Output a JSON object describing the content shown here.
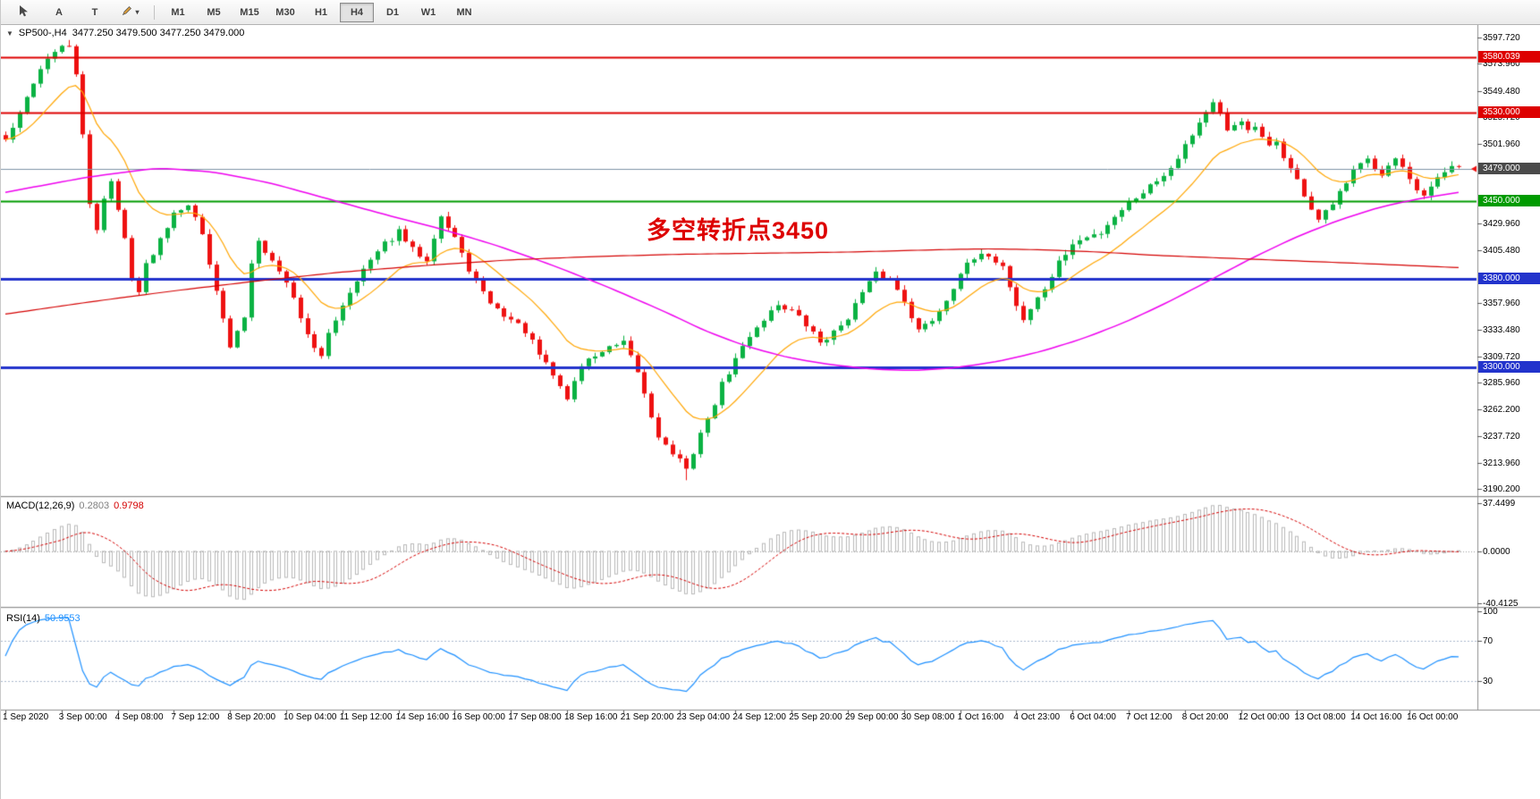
{
  "icons": {
    "collapse": "▼",
    "dropdown": "▾"
  },
  "toolbar": {
    "buttons": [
      {
        "name": "cursor-tool-button",
        "icon": "cursor",
        "label": ""
      },
      {
        "name": "text-label-tool-button",
        "icon": "",
        "label": "A"
      },
      {
        "name": "text-tool-button",
        "icon": "",
        "label": "T"
      },
      {
        "name": "drawing-tool-button",
        "icon": "pencil",
        "label": ""
      }
    ],
    "timeframes": [
      "M1",
      "M5",
      "M15",
      "M30",
      "H1",
      "H4",
      "D1",
      "W1",
      "MN"
    ],
    "active_timeframe": "H4"
  },
  "chart_data": {
    "type": "candlestick",
    "symbol": "SP500-",
    "timeframe": "H4",
    "title_text": "SP500-,H4",
    "ohlc_text": "3477.250 3479.500 3477.250 3479.000",
    "annotation": {
      "text": "多空转折点3450",
      "color": "#dd0000"
    },
    "price_axis": {
      "min": 3190.2,
      "max": 3597.72,
      "ticks": [
        "3597.720",
        "3573.960",
        "3549.480",
        "3525.720",
        "3501.960",
        "3429.960",
        "3405.480",
        "3357.960",
        "3333.480",
        "3309.720",
        "3285.960",
        "3262.200",
        "3237.720",
        "3213.960",
        "3190.200"
      ]
    },
    "levels": [
      {
        "price": 3580.039,
        "label": "3580.039",
        "color": "#dd0000",
        "line_width": 2
      },
      {
        "price": 3530.0,
        "label": "3530.000",
        "color": "#dd0000",
        "line_width": 2
      },
      {
        "price": 3450.0,
        "label": "3450.000",
        "color": "#009b00",
        "line_width": 2
      },
      {
        "price": 3380.0,
        "label": "3380.000",
        "color": "#2233cc",
        "line_width": 3
      },
      {
        "price": 3300.0,
        "label": "3300.000",
        "color": "#2233cc",
        "line_width": 3
      }
    ],
    "current_price": {
      "value": 3479.0,
      "label": "3479.000",
      "line_color": "#7d93a6",
      "box_color": "#4a4a4a"
    },
    "candles": {
      "count": 208,
      "noise_seed": 42,
      "up_color": "#0bb243",
      "down_color": "#ee1111",
      "high_spike": [
        9,
        3595.5
      ],
      "low_spike": [
        97,
        3198.0
      ],
      "close_anchors": [
        [
          0,
          3505
        ],
        [
          2,
          3528
        ],
        [
          4,
          3558
        ],
        [
          6,
          3580
        ],
        [
          8,
          3588
        ],
        [
          9,
          3590
        ],
        [
          10,
          3566
        ],
        [
          11,
          3508
        ],
        [
          12,
          3446
        ],
        [
          13,
          3425
        ],
        [
          14,
          3454
        ],
        [
          15,
          3468
        ],
        [
          16,
          3441
        ],
        [
          17,
          3416
        ],
        [
          18,
          3382
        ],
        [
          19,
          3368
        ],
        [
          20,
          3392
        ],
        [
          22,
          3416
        ],
        [
          24,
          3441
        ],
        [
          26,
          3448
        ],
        [
          28,
          3420
        ],
        [
          30,
          3371
        ],
        [
          31,
          3342
        ],
        [
          32,
          3318
        ],
        [
          33,
          3331
        ],
        [
          34,
          3346
        ],
        [
          35,
          3394
        ],
        [
          36,
          3417
        ],
        [
          37,
          3406
        ],
        [
          39,
          3386
        ],
        [
          40,
          3378
        ],
        [
          42,
          3346
        ],
        [
          44,
          3316
        ],
        [
          45,
          3308
        ],
        [
          46,
          3331
        ],
        [
          48,
          3357
        ],
        [
          50,
          3380
        ],
        [
          52,
          3396
        ],
        [
          54,
          3411
        ],
        [
          56,
          3422
        ],
        [
          58,
          3406
        ],
        [
          60,
          3398
        ],
        [
          61,
          3419
        ],
        [
          62,
          3437
        ],
        [
          63,
          3426
        ],
        [
          64,
          3417
        ],
        [
          65,
          3401
        ],
        [
          66,
          3389
        ],
        [
          68,
          3366
        ],
        [
          70,
          3352
        ],
        [
          72,
          3343
        ],
        [
          74,
          3333
        ],
        [
          76,
          3311
        ],
        [
          78,
          3293
        ],
        [
          80,
          3272
        ],
        [
          81,
          3287
        ],
        [
          82,
          3302
        ],
        [
          84,
          3311
        ],
        [
          86,
          3317
        ],
        [
          88,
          3321
        ],
        [
          90,
          3296
        ],
        [
          92,
          3256
        ],
        [
          93,
          3239
        ],
        [
          94,
          3229
        ],
        [
          96,
          3216
        ],
        [
          97,
          3206
        ],
        [
          98,
          3224
        ],
        [
          99,
          3241
        ],
        [
          100,
          3252
        ],
        [
          102,
          3284
        ],
        [
          104,
          3307
        ],
        [
          106,
          3329
        ],
        [
          108,
          3344
        ],
        [
          110,
          3357
        ],
        [
          112,
          3351
        ],
        [
          114,
          3338
        ],
        [
          116,
          3323
        ],
        [
          118,
          3331
        ],
        [
          120,
          3346
        ],
        [
          122,
          3367
        ],
        [
          124,
          3384
        ],
        [
          126,
          3379
        ],
        [
          128,
          3361
        ],
        [
          130,
          3333
        ],
        [
          132,
          3343
        ],
        [
          134,
          3361
        ],
        [
          136,
          3386
        ],
        [
          138,
          3397
        ],
        [
          140,
          3402
        ],
        [
          142,
          3391
        ],
        [
          144,
          3356
        ],
        [
          145,
          3343
        ],
        [
          146,
          3353
        ],
        [
          148,
          3371
        ],
        [
          150,
          3394
        ],
        [
          152,
          3411
        ],
        [
          154,
          3417
        ],
        [
          156,
          3422
        ],
        [
          158,
          3437
        ],
        [
          160,
          3449
        ],
        [
          162,
          3459
        ],
        [
          164,
          3469
        ],
        [
          166,
          3481
        ],
        [
          168,
          3501
        ],
        [
          170,
          3521
        ],
        [
          171,
          3531
        ],
        [
          172,
          3538
        ],
        [
          173,
          3527
        ],
        [
          174,
          3512
        ],
        [
          175,
          3519
        ],
        [
          176,
          3524
        ],
        [
          177,
          3512
        ],
        [
          178,
          3517
        ],
        [
          179,
          3506
        ],
        [
          180,
          3498
        ],
        [
          181,
          3504
        ],
        [
          182,
          3491
        ],
        [
          183,
          3479
        ],
        [
          184,
          3468
        ],
        [
          185,
          3456
        ],
        [
          186,
          3443
        ],
        [
          187,
          3433
        ],
        [
          188,
          3439
        ],
        [
          189,
          3447
        ],
        [
          190,
          3457
        ],
        [
          191,
          3464
        ],
        [
          192,
          3477
        ],
        [
          193,
          3487
        ],
        [
          194,
          3491
        ],
        [
          195,
          3481
        ],
        [
          196,
          3473
        ],
        [
          197,
          3481
        ],
        [
          198,
          3487
        ],
        [
          199,
          3478
        ],
        [
          200,
          3468
        ],
        [
          201,
          3459
        ],
        [
          202,
          3453
        ],
        [
          203,
          3461
        ],
        [
          204,
          3471
        ],
        [
          205,
          3477
        ],
        [
          206,
          3482
        ],
        [
          207,
          3479
        ]
      ]
    },
    "moving_averages": {
      "fast_period": 14,
      "fast_color": "#ffa500",
      "slow_color": "#ee00ee",
      "long_color": "#d40000",
      "slow_anchors": [
        [
          0,
          3458
        ],
        [
          12,
          3472
        ],
        [
          22,
          3480
        ],
        [
          30,
          3476
        ],
        [
          38,
          3466
        ],
        [
          46,
          3452
        ],
        [
          54,
          3438
        ],
        [
          62,
          3425
        ],
        [
          70,
          3410
        ],
        [
          78,
          3392
        ],
        [
          86,
          3372
        ],
        [
          94,
          3350
        ],
        [
          100,
          3332
        ],
        [
          106,
          3318
        ],
        [
          112,
          3308
        ],
        [
          118,
          3302
        ],
        [
          124,
          3298
        ],
        [
          130,
          3297
        ],
        [
          136,
          3300
        ],
        [
          142,
          3306
        ],
        [
          148,
          3315
        ],
        [
          154,
          3327
        ],
        [
          160,
          3342
        ],
        [
          166,
          3360
        ],
        [
          172,
          3380
        ],
        [
          178,
          3400
        ],
        [
          184,
          3418
        ],
        [
          190,
          3433
        ],
        [
          196,
          3445
        ],
        [
          202,
          3453
        ],
        [
          207,
          3458
        ]
      ],
      "long_anchors": [
        [
          0,
          3348
        ],
        [
          12,
          3359
        ],
        [
          24,
          3369
        ],
        [
          36,
          3378
        ],
        [
          48,
          3386
        ],
        [
          60,
          3392
        ],
        [
          72,
          3397
        ],
        [
          84,
          3400
        ],
        [
          96,
          3402
        ],
        [
          108,
          3403
        ],
        [
          120,
          3404
        ],
        [
          132,
          3406
        ],
        [
          140,
          3407
        ],
        [
          148,
          3406
        ],
        [
          156,
          3404
        ],
        [
          164,
          3401
        ],
        [
          172,
          3399
        ],
        [
          180,
          3397
        ],
        [
          188,
          3395
        ],
        [
          196,
          3393
        ],
        [
          207,
          3390
        ]
      ]
    },
    "time_labels": [
      "1 Sep 2020",
      "3 Sep 00:00",
      "4 Sep 08:00",
      "7 Sep 12:00",
      "8 Sep 20:00",
      "10 Sep 04:00",
      "11 Sep 12:00",
      "14 Sep 16:00",
      "16 Sep 00:00",
      "17 Sep 08:00",
      "18 Sep 16:00",
      "21 Sep 20:00",
      "23 Sep 04:00",
      "24 Sep 12:00",
      "25 Sep 20:00",
      "29 Sep 00:00",
      "30 Sep 08:00",
      "1 Oct 16:00",
      "4 Oct 23:00",
      "6 Oct 04:00",
      "7 Oct 12:00",
      "8 Oct 20:00",
      "12 Oct 00:00",
      "13 Oct 08:00",
      "14 Oct 16:00",
      "16 Oct 00:00"
    ],
    "bars_per_label": 8
  },
  "indicators": {
    "macd": {
      "name": "MACD(12,26,9)",
      "fast": 12,
      "slow": 26,
      "signal": 9,
      "value_main": "0.2803",
      "value_signal": "0.9798",
      "axis_max": 37.4499,
      "axis_min": -40.4125,
      "ticks": [
        "37.4499",
        "0.0000",
        "-40.4125"
      ],
      "histogram_color": "#b9b9b9",
      "signal_color": "#d40000"
    },
    "rsi": {
      "name": "RSI(14)",
      "period": 14,
      "value": "50.9553",
      "levels": [
        70,
        30
      ],
      "ticks": [
        "100",
        "70",
        "30"
      ],
      "line_color": "#1e90ff",
      "level_color": "#a9b7cc"
    }
  }
}
